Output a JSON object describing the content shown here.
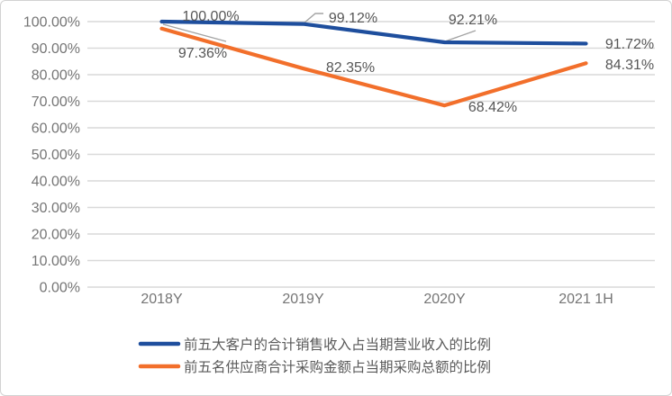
{
  "chart_data": {
    "type": "line",
    "title": "",
    "x_categories": [
      "2018Y",
      "2019Y",
      "2020Y",
      "2021 1H"
    ],
    "series": [
      {
        "name": "前五大客户的合计销售收入占当期营业收入的比例",
        "color": "#1e4e9d",
        "values": [
          100.0,
          99.12,
          92.21,
          91.72
        ],
        "labels": [
          "100.00%",
          "99.12%",
          "92.21%",
          "91.72%"
        ]
      },
      {
        "name": "前五名供应商合计采购金额占当期采购总额的比例",
        "color": "#f26f2b",
        "values": [
          97.36,
          82.35,
          68.42,
          84.31
        ],
        "labels": [
          "97.36%",
          "82.35%",
          "68.42%",
          "84.31%"
        ]
      }
    ],
    "y_axis": {
      "min": 0,
      "max": 100,
      "step": 10,
      "tick_labels": [
        "0.00%",
        "10.00%",
        "20.00%",
        "30.00%",
        "40.00%",
        "50.00%",
        "60.00%",
        "70.00%",
        "80.00%",
        "90.00%",
        "100.00%"
      ]
    },
    "grid": true,
    "legend_position": "bottom",
    "colors": {
      "gridline": "#d9d9d9",
      "axis_text": "#757575",
      "data_label_text": "#565656",
      "leader_line": "#a3a3a3",
      "card_border": "#d2d2d2"
    }
  }
}
